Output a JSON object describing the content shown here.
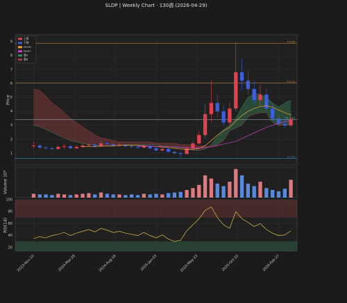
{
  "chart_data": [
    {
      "type": "candlestick",
      "title": "SLDP  |  Weekly Chart · 130週  (2026-04-29)",
      "y_label": "Price",
      "x": [
        0,
        3,
        6,
        9,
        12,
        15,
        18,
        21,
        24,
        27,
        30,
        33,
        36,
        39,
        42,
        45,
        48,
        51,
        54,
        57,
        60,
        63,
        66,
        69,
        72,
        75,
        78,
        81,
        84,
        87,
        90,
        93,
        96,
        99,
        102,
        105,
        108,
        111,
        114,
        117,
        120,
        123,
        126
      ],
      "open": [
        1.5,
        1.55,
        1.4,
        1.35,
        1.3,
        1.45,
        1.5,
        1.35,
        1.45,
        1.55,
        1.6,
        1.5,
        1.7,
        1.65,
        1.55,
        1.6,
        1.5,
        1.45,
        1.4,
        1.5,
        1.35,
        1.2,
        1.3,
        1.1,
        1.0,
        0.95,
        1.35,
        1.7,
        2.3,
        3.8,
        4.6,
        4.0,
        3.2,
        4.2,
        6.8,
        6.2,
        5.6,
        4.8,
        5.2,
        4.2,
        3.5,
        3.1,
        3.0
      ],
      "high": [
        1.8,
        1.65,
        1.5,
        1.45,
        1.55,
        1.65,
        1.6,
        1.55,
        1.7,
        1.75,
        1.7,
        1.9,
        1.85,
        1.75,
        1.8,
        1.7,
        1.6,
        1.55,
        1.65,
        1.6,
        1.45,
        1.45,
        1.4,
        1.2,
        1.1,
        1.5,
        1.9,
        2.6,
        4.5,
        6.2,
        5.2,
        4.5,
        4.6,
        9.0,
        7.8,
        6.9,
        6.2,
        5.9,
        5.6,
        4.5,
        3.8,
        3.6,
        3.8
      ],
      "low": [
        1.35,
        1.3,
        1.25,
        1.2,
        1.25,
        1.35,
        1.3,
        1.3,
        1.4,
        1.45,
        1.4,
        1.45,
        1.55,
        1.45,
        1.45,
        1.4,
        1.35,
        1.3,
        1.35,
        1.25,
        1.1,
        1.1,
        1.0,
        0.9,
        0.7,
        0.9,
        1.25,
        1.6,
        2.1,
        3.2,
        3.6,
        3.0,
        3.0,
        4.0,
        5.5,
        5.2,
        4.5,
        4.4,
        4.0,
        3.3,
        2.9,
        2.8,
        2.9
      ],
      "close": [
        1.55,
        1.4,
        1.35,
        1.3,
        1.45,
        1.5,
        1.35,
        1.45,
        1.55,
        1.6,
        1.5,
        1.7,
        1.65,
        1.55,
        1.6,
        1.5,
        1.45,
        1.4,
        1.5,
        1.35,
        1.2,
        1.3,
        1.1,
        1.0,
        0.95,
        1.35,
        1.7,
        2.3,
        3.8,
        4.6,
        4.0,
        3.2,
        4.2,
        6.8,
        6.2,
        5.6,
        4.8,
        5.2,
        4.2,
        3.5,
        3.1,
        3.0,
        3.45
      ],
      "up": {
        "name": "上昇",
        "color": "#e0424e"
      },
      "down": {
        "name": "下降",
        "color": "#3b5fe0"
      },
      "series": [
        {
          "name": "MA26",
          "color": "#f0a040",
          "values": [
            null,
            null,
            null,
            null,
            null,
            null,
            null,
            null,
            1.45,
            1.47,
            1.48,
            1.5,
            1.52,
            1.53,
            1.55,
            1.56,
            1.56,
            1.55,
            1.53,
            1.5,
            1.47,
            1.44,
            1.4,
            1.35,
            1.3,
            1.27,
            1.28,
            1.35,
            1.55,
            1.9,
            2.3,
            2.6,
            2.85,
            3.3,
            3.7,
            4.0,
            4.2,
            4.35,
            4.4,
            4.3,
            4.1,
            3.9,
            3.75
          ]
        },
        {
          "name": "MA52",
          "color": "#d040d0",
          "values": [
            null,
            null,
            null,
            null,
            null,
            null,
            null,
            null,
            null,
            null,
            null,
            null,
            null,
            null,
            null,
            null,
            null,
            1.5,
            1.5,
            1.5,
            1.49,
            1.48,
            1.47,
            1.45,
            1.43,
            1.4,
            1.38,
            1.38,
            1.4,
            1.45,
            1.55,
            1.65,
            1.75,
            1.85,
            2.05,
            2.25,
            2.45,
            2.65,
            2.85,
            3.0,
            3.15,
            3.25,
            3.35
          ]
        }
      ],
      "cloud": {
        "a": {
          "name": "雲A",
          "color": "#3a8a5a",
          "values": [
            3.0,
            2.9,
            2.7,
            2.5,
            2.3,
            2.1,
            1.9,
            1.8,
            1.7,
            1.6,
            1.6,
            1.5,
            1.5,
            1.5,
            1.6,
            1.6,
            1.6,
            1.6,
            1.6,
            1.6,
            1.6,
            1.5,
            1.5,
            1.4,
            1.4,
            1.3,
            1.2,
            1.2,
            1.3,
            1.6,
            2.2,
            2.7,
            3.0,
            3.5,
            4.3,
            5.0,
            5.3,
            5.2,
            5.0,
            4.6,
            4.3,
            4.6,
            4.8
          ]
        },
        "b": {
          "name": "雲B",
          "color": "#a04040",
          "values": [
            5.6,
            5.5,
            5.1,
            4.6,
            4.3,
            3.9,
            3.5,
            3.2,
            2.9,
            2.6,
            2.3,
            2.1,
            2.0,
            1.9,
            1.8,
            1.8,
            1.8,
            1.8,
            1.8,
            1.8,
            1.7,
            1.7,
            1.7,
            1.7,
            1.6,
            1.6,
            1.6,
            1.5,
            1.5,
            1.5,
            1.6,
            1.9,
            2.6,
            2.8,
            3.0,
            3.6,
            3.8,
            3.9,
            3.9,
            3.2,
            3.0,
            3.0,
            3.0
          ]
        }
      },
      "levels": [
        {
          "value": 8.88,
          "label": "R 8.88",
          "color": "#c08030"
        },
        {
          "value": 6.03,
          "label": "R 6.03",
          "color": "#c08030"
        },
        {
          "value": 3.4,
          "label": "PL 3.40",
          "color": "#8aa0b0"
        },
        {
          "value": 0.63,
          "label": "S 0.63",
          "color": "#3090c0"
        }
      ],
      "xlim": [
        -9,
        129
      ],
      "ylim": [
        0.15,
        9.5
      ],
      "yticks": [
        1,
        2,
        3,
        4,
        5,
        6,
        7,
        8,
        9
      ],
      "grid": true,
      "legend": "upper left",
      "xticks": [
        {
          "value": 0,
          "label": "2023-Nov-10"
        },
        {
          "value": 20,
          "label": "2024-Mar-29"
        },
        {
          "value": 40,
          "label": "2024-Aug-16"
        },
        {
          "value": 60,
          "label": "2025-Jan-03"
        },
        {
          "value": 80,
          "label": "2025-May-23"
        },
        {
          "value": 100,
          "label": "2025-Oct-10"
        },
        {
          "value": 120,
          "label": "2026-Feb-27"
        }
      ]
    },
    {
      "type": "bar",
      "y_label": "Volume  10⁶",
      "ylim": [
        0,
        48
      ],
      "values": [
        6,
        5,
        5,
        4,
        6,
        5,
        4,
        5,
        6,
        7,
        5,
        8,
        6,
        5,
        5,
        4,
        5,
        4,
        6,
        5,
        6,
        5,
        7,
        8,
        9,
        12,
        15,
        20,
        35,
        30,
        22,
        18,
        25,
        45,
        35,
        22,
        18,
        25,
        15,
        12,
        10,
        14,
        28
      ],
      "up_color": "#e07880",
      "down_color": "#5a8ae0"
    },
    {
      "type": "line",
      "y_label": "RSI(14)",
      "color": "#e0c040",
      "ylim": [
        14,
        100
      ],
      "yticks": [
        20,
        40,
        60,
        80,
        100
      ],
      "overbought": 70,
      "oversold": 30,
      "values": [
        35,
        38,
        36,
        40,
        42,
        45,
        40,
        44,
        47,
        50,
        46,
        52,
        49,
        45,
        47,
        44,
        42,
        40,
        45,
        40,
        36,
        41,
        34,
        30,
        32,
        48,
        58,
        68,
        82,
        88,
        70,
        58,
        52,
        80,
        68,
        62,
        55,
        60,
        50,
        44,
        40,
        41,
        48
      ]
    }
  ]
}
